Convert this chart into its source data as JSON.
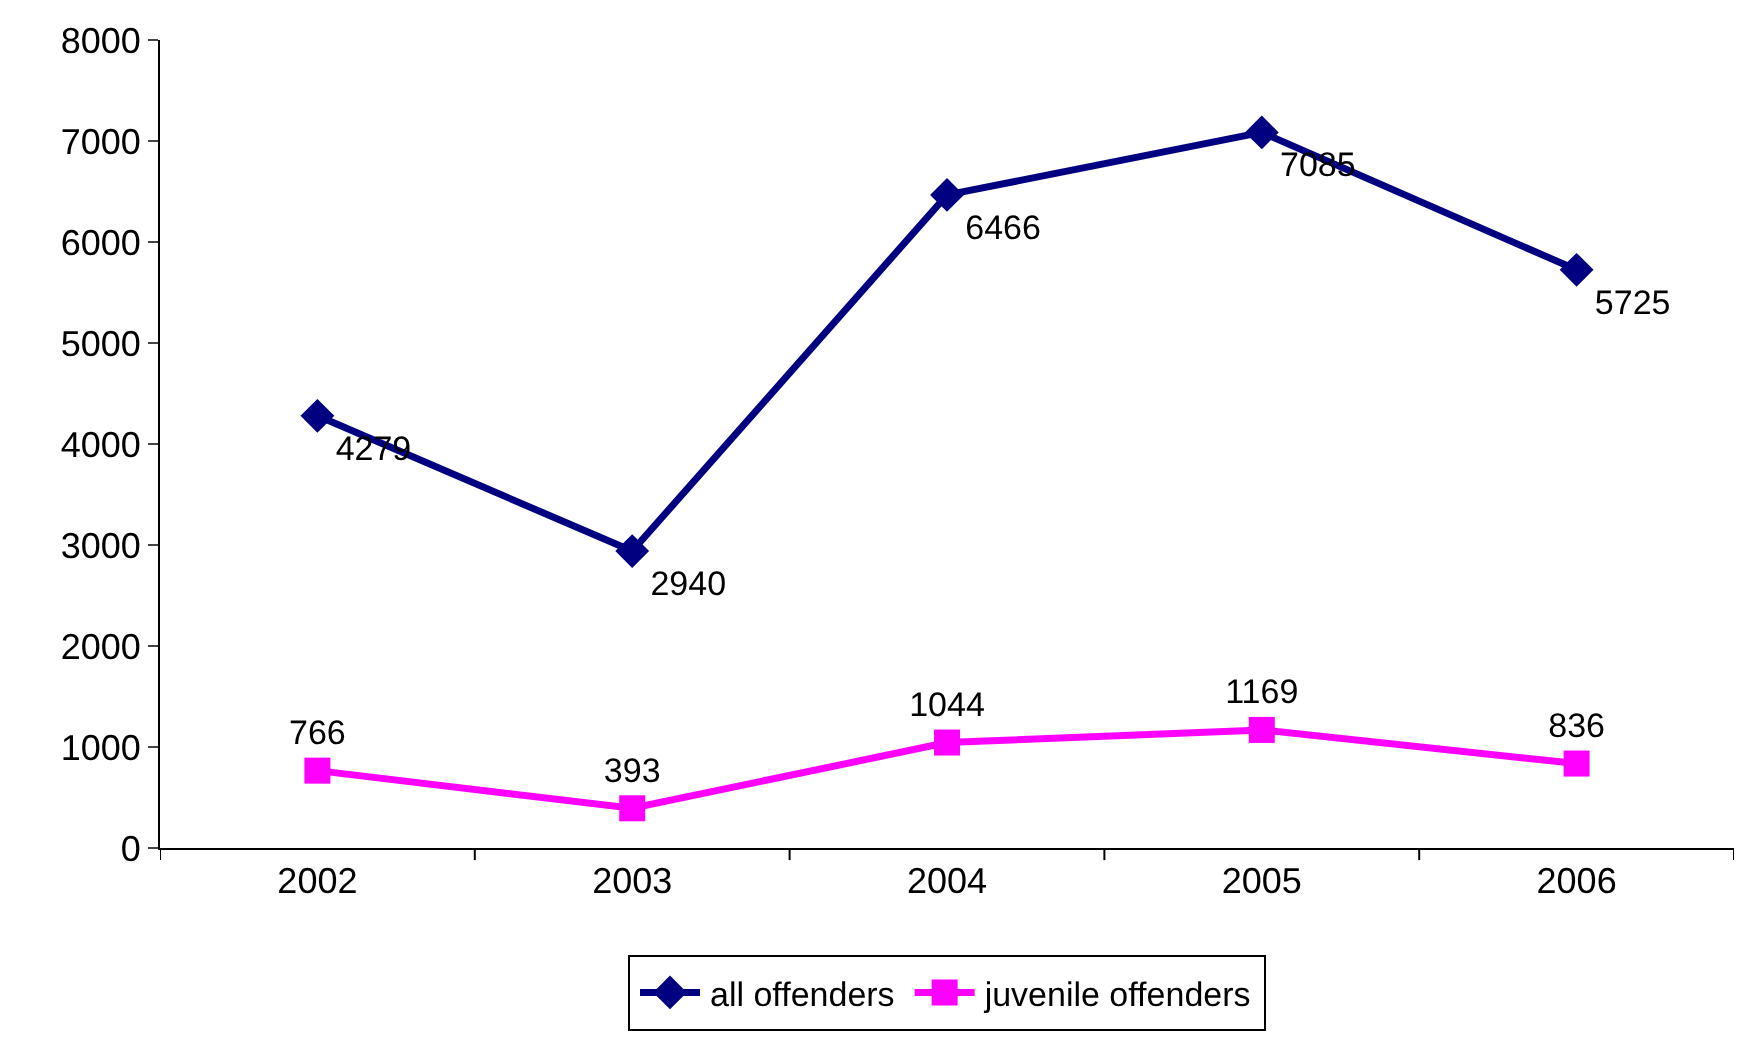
{
  "chart_data": {
    "type": "line",
    "categories": [
      "2002",
      "2003",
      "2004",
      "2005",
      "2006"
    ],
    "series": [
      {
        "name": "all offenders",
        "color": "#000080",
        "values": [
          4279,
          2940,
          6466,
          7085,
          5725
        ],
        "marker": "diamond"
      },
      {
        "name": "juvenile offenders",
        "color": "#ff00ff",
        "values": [
          766,
          393,
          1044,
          1169,
          836
        ],
        "marker": "square"
      }
    ],
    "ylim": [
      0,
      8000
    ],
    "yticks": [
      0,
      1000,
      2000,
      3000,
      4000,
      5000,
      6000,
      7000,
      8000
    ],
    "grid": false,
    "legend": "bottom",
    "data_labels": true,
    "line_style": "solid"
  }
}
